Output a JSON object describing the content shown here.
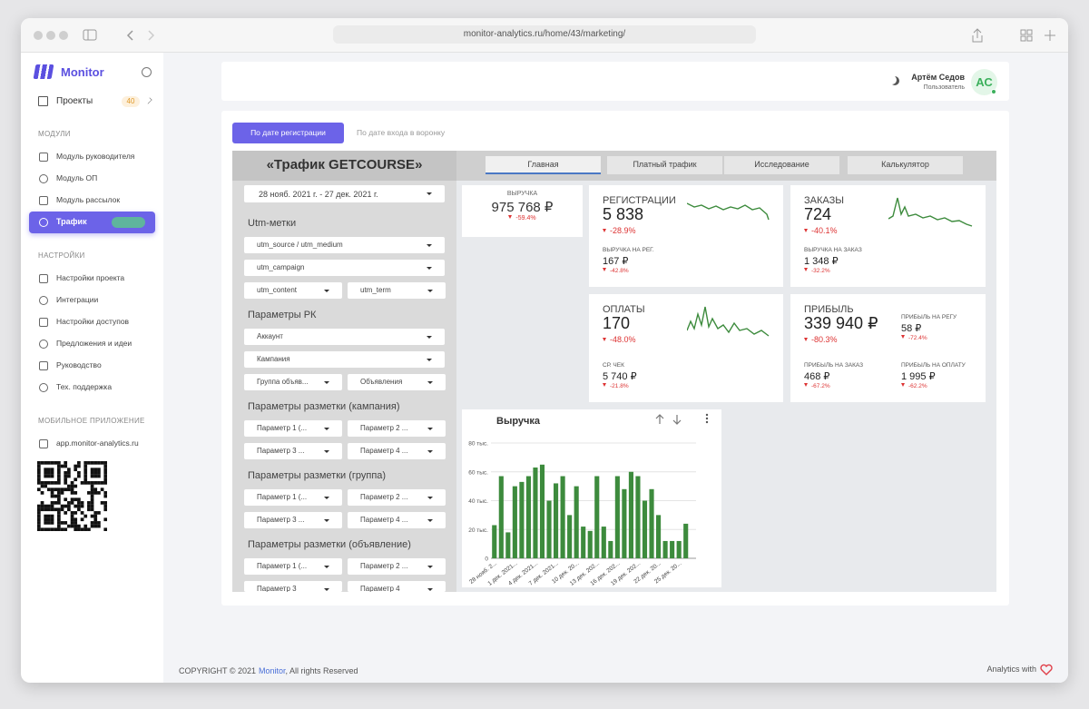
{
  "browser": {
    "url": "monitor-analytics.ru/home/43/marketing/"
  },
  "sidebar": {
    "brand": "Monitor",
    "projects": {
      "label": "Проекты",
      "badge": "40"
    },
    "sections": [
      {
        "title": "МОДУЛИ",
        "items": [
          "Модуль руководителя",
          "Модуль ОП",
          "Модуль рассылок",
          "Трафик"
        ]
      },
      {
        "title": "НАСТРОЙКИ",
        "items": [
          "Настройки проекта",
          "Интеграции",
          "Настройки доступов",
          "Предложения и идеи",
          "Руководство",
          "Тех. поддержка"
        ]
      },
      {
        "title": "МОБИЛЬНОЕ ПРИЛОЖЕНИЕ",
        "items": [
          "app.monitor-analytics.ru"
        ]
      }
    ]
  },
  "user": {
    "name": "Артём Седов",
    "role": "Пользователь",
    "initials": "АС"
  },
  "date_tabs": [
    "По дате регистрации",
    "По дате входа в воронку"
  ],
  "report": {
    "title": "«Трафик GETCOURSE»",
    "tabs": [
      "Главная",
      "Платный трафик",
      "Исследование",
      "Калькулятор"
    ],
    "date_range": "28 нояб. 2021 г. - 27 дек. 2021 г.",
    "filter_groups": [
      {
        "title": "Utm-метки",
        "rows": [
          [
            "utm_source / utm_medium"
          ],
          [
            "utm_campaign"
          ],
          [
            "utm_content",
            "utm_term"
          ]
        ]
      },
      {
        "title": "Параметры РК",
        "rows": [
          [
            "Аккаунт"
          ],
          [
            "Кампания"
          ],
          [
            "Группа объяв...",
            "Объявления"
          ]
        ]
      },
      {
        "title": "Параметры разметки (кампания)",
        "rows": [
          [
            "Параметр 1 (...",
            "Параметр 2 ..."
          ],
          [
            "Параметр 3 ...",
            "Параметр 4 ..."
          ]
        ]
      },
      {
        "title": "Параметры разметки (группа)",
        "rows": [
          [
            "Параметр 1 (...",
            "Параметр 2 ..."
          ],
          [
            "Параметр 3 ...",
            "Параметр 4 ..."
          ]
        ]
      },
      {
        "title": "Параметры разметки (объявление)",
        "rows": [
          [
            "Параметр 1 (...",
            "Параметр 2 ..."
          ],
          [
            "Параметр 3",
            "Параметр 4"
          ]
        ]
      }
    ]
  },
  "kpis": [
    {
      "label": "ВЫРУЧКА",
      "value": "975 768 ₽",
      "delta": "-59.4%",
      "subs": []
    },
    {
      "label": "РЕГИСТРАЦИИ",
      "value": "5 838",
      "delta": "-28.9%",
      "subs": [
        {
          "label": "ВЫРУЧКА НА РЕГ.",
          "value": "167 ₽",
          "delta": "-42.8%"
        }
      ]
    },
    {
      "label": "ЗАКАЗЫ",
      "value": "724",
      "delta": "-40.1%",
      "subs": [
        {
          "label": "ВЫРУЧКА НА ЗАКАЗ",
          "value": "1 348 ₽",
          "delta": "-32.2%"
        }
      ]
    },
    {
      "label": "ОПЛАТЫ",
      "value": "170",
      "delta": "-48.0%",
      "subs": [
        {
          "label": "СР. ЧЕК",
          "value": "5 740 ₽",
          "delta": "-21.8%"
        }
      ]
    },
    {
      "label": "ПРИБЫЛЬ",
      "value": "339 940 ₽",
      "delta": "-80.3%",
      "subs": [
        {
          "label": "ПРИБЫЛЬ НА РЕГУ",
          "value": "58 ₽",
          "delta": "-72.4%"
        },
        {
          "label": "ПРИБЫЛЬ НА ЗАКАЗ",
          "value": "468 ₽",
          "delta": "-67.2%"
        },
        {
          "label": "ПРИБЫЛЬ НА ОПЛАТУ",
          "value": "1 995 ₽",
          "delta": "-62.2%"
        }
      ]
    }
  ],
  "chart_data": {
    "type": "bar",
    "title": "Выручка",
    "color": "#3d8b3d",
    "categories": [
      "28 нояб. 2...",
      null,
      null,
      "1 дек. 2021...",
      null,
      null,
      "4 дек. 2021...",
      null,
      null,
      "7 дек. 2021...",
      null,
      null,
      "10 дек. 20...",
      null,
      null,
      "13 дек. 202...",
      null,
      null,
      "16 дек. 202...",
      null,
      null,
      "19 дек. 202...",
      null,
      null,
      "22 дек. 20...",
      null,
      null,
      "25 дек. 20...",
      null,
      null
    ],
    "values": [
      23000,
      57000,
      18000,
      50000,
      53000,
      57000,
      63000,
      65000,
      40000,
      52000,
      57000,
      30000,
      50000,
      22000,
      19000,
      57000,
      22000,
      12000,
      57000,
      48000,
      60000,
      57000,
      40000,
      48000,
      30000,
      12000,
      12000,
      12000,
      24000,
      0
    ],
    "ylim": [
      0,
      80000
    ],
    "yticks": [
      0,
      {
        "value": 20000,
        "label": "20 тыс."
      },
      {
        "value": 40000,
        "label": "40 тыс."
      },
      {
        "value": 60000,
        "label": "60 тыс."
      },
      {
        "value": 80000,
        "label": "80 тыс."
      }
    ],
    "grid": true
  },
  "footer": {
    "copyright": "COPYRIGHT © 2021",
    "brand": "Monitor",
    "rights": ", All rights Reserved",
    "credit": "Analytics with"
  }
}
